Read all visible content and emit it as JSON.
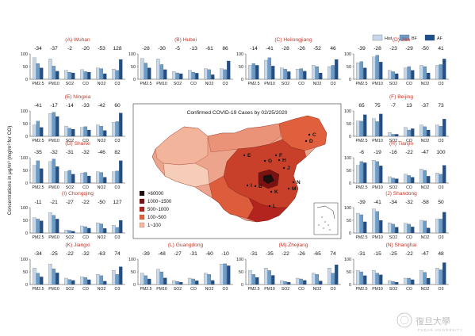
{
  "figure": {
    "legend": [
      {
        "label": "Hist",
        "color": "#c6d8ea"
      },
      {
        "label": "BF",
        "color": "#6c9dc8"
      },
      {
        "label": "AF",
        "color": "#1d4f8c"
      }
    ],
    "ylabel": "Concentrations in μg/m³ (mg/m³ for CO)",
    "map": {
      "title": "Confirmed COVID-19 Cases by 02/25/2020",
      "legend": [
        {
          "label": ">60000",
          "color": "#1f0e0e"
        },
        {
          "label": "1000~1500",
          "color": "#7a1212"
        },
        {
          "label": "500~1000",
          "color": "#b3241e"
        },
        {
          "label": "100~500",
          "color": "#e2613f"
        },
        {
          "label": "1~100",
          "color": "#f4b8a0"
        }
      ],
      "markers": [
        "A",
        "B",
        "C",
        "D",
        "E",
        "F",
        "G",
        "H",
        "I",
        "J",
        "K",
        "L",
        "M",
        "N"
      ]
    },
    "watermark": {
      "mark": "復旦大學",
      "caption": "FUDAN UNIVERSITY"
    }
  },
  "chart_data": [
    {
      "type": "bar",
      "panel": "A",
      "title": "(A) Wuhan",
      "categories": [
        "PM2.5",
        "PM10",
        "SO2",
        "CO",
        "NO2",
        "O3"
      ],
      "changes": [
        "-34",
        "-37",
        "-2",
        "-20",
        "-53",
        "128"
      ],
      "ylim": [
        0,
        100
      ],
      "series": [
        {
          "name": "Hist",
          "values": [
            85,
            80,
            35,
            38,
            45,
            40
          ]
        },
        {
          "name": "BF",
          "values": [
            62,
            52,
            28,
            30,
            42,
            35
          ]
        },
        {
          "name": "AF",
          "values": [
            45,
            32,
            25,
            28,
            22,
            78
          ]
        }
      ]
    },
    {
      "type": "bar",
      "panel": "B",
      "title": "(B) Hubei",
      "categories": [
        "PM2.5",
        "PM10",
        "SO2",
        "CO",
        "NO2",
        "O3"
      ],
      "changes": [
        "-28",
        "-30",
        "-5",
        "-13",
        "-61",
        "86"
      ],
      "ylim": [
        0,
        100
      ],
      "series": [
        {
          "name": "Hist",
          "values": [
            82,
            80,
            30,
            35,
            42,
            42
          ]
        },
        {
          "name": "BF",
          "values": [
            64,
            58,
            25,
            28,
            38,
            38
          ]
        },
        {
          "name": "AF",
          "values": [
            45,
            38,
            22,
            24,
            18,
            72
          ]
        }
      ]
    },
    {
      "type": "bar",
      "panel": "C",
      "title": "(C) Heilongjiang",
      "categories": [
        "PM2.5",
        "PM10",
        "SO2",
        "CO",
        "NO2",
        "O3"
      ],
      "changes": [
        "-14",
        "-41",
        "-28",
        "-26",
        "-52",
        "46"
      ],
      "ylim": [
        0,
        100
      ],
      "series": [
        {
          "name": "Hist",
          "values": [
            55,
            75,
            45,
            40,
            55,
            50
          ]
        },
        {
          "name": "BF",
          "values": [
            62,
            85,
            40,
            42,
            50,
            55
          ]
        },
        {
          "name": "AF",
          "values": [
            55,
            52,
            30,
            32,
            25,
            78
          ]
        }
      ]
    },
    {
      "type": "bar",
      "panel": "D",
      "title": "(D) Jilin",
      "categories": [
        "PM2.5",
        "PM10",
        "SO2",
        "CO",
        "NO2",
        "O3"
      ],
      "changes": [
        "-39",
        "-28",
        "-23",
        "-29",
        "-50",
        "41"
      ],
      "ylim": [
        0,
        100
      ],
      "series": [
        {
          "name": "Hist",
          "values": [
            65,
            88,
            35,
            45,
            55,
            55
          ]
        },
        {
          "name": "BF",
          "values": [
            70,
            95,
            30,
            50,
            50,
            58
          ]
        },
        {
          "name": "AF",
          "values": [
            45,
            68,
            22,
            35,
            25,
            80
          ]
        }
      ]
    },
    {
      "type": "bar",
      "panel": "E",
      "title": "(E) Ningxia",
      "categories": [
        "PM2.5",
        "PM10",
        "SO2",
        "CO",
        "NO2",
        "O3"
      ],
      "changes": [
        "-41",
        "-17",
        "-14",
        "-33",
        "-42",
        "60"
      ],
      "ylim": [
        0,
        100
      ],
      "series": [
        {
          "name": "Hist",
          "values": [
            45,
            90,
            40,
            35,
            45,
            55
          ]
        },
        {
          "name": "BF",
          "values": [
            60,
            95,
            32,
            38,
            40,
            58
          ]
        },
        {
          "name": "AF",
          "values": [
            35,
            78,
            28,
            25,
            23,
            92
          ]
        }
      ]
    },
    {
      "type": "bar",
      "panel": "F",
      "title": "(F) Beijing",
      "categories": [
        "PM2.5",
        "PM10",
        "SO2",
        "CO",
        "NO2",
        "O3"
      ],
      "changes": [
        "65",
        "75",
        "-7",
        "13",
        "-37",
        "73"
      ],
      "ylim": [
        0,
        100
      ],
      "series": [
        {
          "name": "Hist",
          "values": [
            60,
            70,
            15,
            35,
            45,
            45
          ]
        },
        {
          "name": "BF",
          "values": [
            60,
            58,
            8,
            25,
            38,
            40
          ]
        },
        {
          "name": "AF",
          "values": [
            85,
            88,
            8,
            30,
            25,
            68
          ]
        }
      ]
    },
    {
      "type": "bar",
      "panel": "G",
      "title": "(G) Shanxi",
      "categories": [
        "PM2.5",
        "PM10",
        "SO2",
        "CO",
        "NO2",
        "O3"
      ],
      "changes": [
        "-35",
        "-32",
        "-31",
        "-32",
        "-46",
        "82"
      ],
      "ylim": [
        0,
        100
      ],
      "series": [
        {
          "name": "Hist",
          "values": [
            70,
            85,
            45,
            40,
            45,
            45
          ]
        },
        {
          "name": "BF",
          "values": [
            88,
            95,
            50,
            42,
            42,
            48
          ]
        },
        {
          "name": "AF",
          "values": [
            57,
            65,
            35,
            28,
            23,
            88
          ]
        }
      ]
    },
    {
      "type": "bar",
      "panel": "H",
      "title": "(H) Tianjin",
      "categories": [
        "PM2.5",
        "PM10",
        "SO2",
        "CO",
        "NO2",
        "O3"
      ],
      "changes": [
        "-6",
        "-19",
        "-16",
        "-22",
        "-47",
        "100"
      ],
      "ylim": [
        0,
        100
      ],
      "series": [
        {
          "name": "Hist",
          "values": [
            70,
            90,
            25,
            35,
            55,
            40
          ]
        },
        {
          "name": "BF",
          "values": [
            85,
            85,
            20,
            30,
            50,
            35
          ]
        },
        {
          "name": "AF",
          "values": [
            80,
            68,
            17,
            23,
            27,
            70
          ]
        }
      ]
    },
    {
      "type": "bar",
      "panel": "I",
      "title": "(I) Chongqing",
      "categories": [
        "PM2.5",
        "PM10",
        "SO2",
        "CO",
        "NO2",
        "O3"
      ],
      "changes": [
        "-11",
        "-21",
        "-27",
        "-22",
        "-50",
        "127"
      ],
      "ylim": [
        0,
        100
      ],
      "series": [
        {
          "name": "Hist",
          "values": [
            60,
            80,
            12,
            28,
            40,
            30
          ]
        },
        {
          "name": "BF",
          "values": [
            55,
            70,
            10,
            25,
            36,
            22
          ]
        },
        {
          "name": "AF",
          "values": [
            48,
            55,
            7,
            19,
            18,
            50
          ]
        }
      ]
    },
    {
      "type": "bar",
      "panel": "J",
      "title": "(J) Shandong",
      "categories": [
        "PM2.5",
        "PM10",
        "SO2",
        "CO",
        "NO2",
        "O3"
      ],
      "changes": [
        "-39",
        "-41",
        "-34",
        "-32",
        "-58",
        "50"
      ],
      "ylim": [
        0,
        100
      ],
      "series": [
        {
          "name": "Hist",
          "values": [
            78,
            95,
            40,
            38,
            50,
            55
          ]
        },
        {
          "name": "BF",
          "values": [
            72,
            85,
            35,
            35,
            48,
            55
          ]
        },
        {
          "name": "AF",
          "values": [
            44,
            50,
            23,
            24,
            20,
            82
          ]
        }
      ]
    },
    {
      "type": "bar",
      "panel": "K",
      "title": "(K) Jiangxi",
      "categories": [
        "PM2.5",
        "PM10",
        "SO2",
        "CO",
        "NO2",
        "O3"
      ],
      "changes": [
        "-34",
        "-25",
        "-22",
        "-32",
        "-63",
        "74"
      ],
      "ylim": [
        0,
        100
      ],
      "series": [
        {
          "name": "Hist",
          "values": [
            65,
            80,
            25,
            30,
            40,
            55
          ]
        },
        {
          "name": "BF",
          "values": [
            45,
            62,
            20,
            28,
            35,
            40
          ]
        },
        {
          "name": "AF",
          "values": [
            30,
            46,
            16,
            19,
            13,
            70
          ]
        }
      ]
    },
    {
      "type": "bar",
      "panel": "L",
      "title": "(L) Guangdong",
      "categories": [
        "PM2.5",
        "PM10",
        "SO2",
        "CO",
        "NO2",
        "O3"
      ],
      "changes": [
        "-39",
        "-48",
        "-27",
        "-31",
        "-60",
        "-10"
      ],
      "ylim": [
        0,
        100
      ],
      "series": [
        {
          "name": "Hist",
          "values": [
            45,
            60,
            15,
            25,
            45,
            80
          ]
        },
        {
          "name": "BF",
          "values": [
            35,
            50,
            12,
            22,
            40,
            82
          ]
        },
        {
          "name": "AF",
          "values": [
            22,
            26,
            9,
            15,
            16,
            74
          ]
        }
      ]
    },
    {
      "type": "bar",
      "panel": "M",
      "title": "(M) Zhejiang",
      "categories": [
        "PM2.5",
        "PM10",
        "SO2",
        "CO",
        "NO2",
        "O3"
      ],
      "changes": [
        "-31",
        "-35",
        "-22",
        "-26",
        "-65",
        "74"
      ],
      "ylim": [
        0,
        100
      ],
      "series": [
        {
          "name": "Hist",
          "values": [
            55,
            65,
            15,
            25,
            45,
            65
          ]
        },
        {
          "name": "BF",
          "values": [
            40,
            55,
            12,
            22,
            40,
            45
          ]
        },
        {
          "name": "AF",
          "values": [
            28,
            36,
            9,
            16,
            14,
            78
          ]
        }
      ]
    },
    {
      "type": "bar",
      "panel": "N",
      "title": "(N) Shanghai",
      "categories": [
        "PM2.5",
        "PM10",
        "SO2",
        "CO",
        "NO2",
        "O3"
      ],
      "changes": [
        "-31",
        "-15",
        "-25",
        "-22",
        "-47",
        "48"
      ],
      "ylim": [
        0,
        100
      ],
      "series": [
        {
          "name": "Hist",
          "values": [
            55,
            55,
            15,
            25,
            55,
            65
          ]
        },
        {
          "name": "BF",
          "values": [
            50,
            45,
            12,
            25,
            48,
            58
          ]
        },
        {
          "name": "AF",
          "values": [
            35,
            38,
            9,
            19,
            25,
            86
          ]
        }
      ]
    }
  ]
}
